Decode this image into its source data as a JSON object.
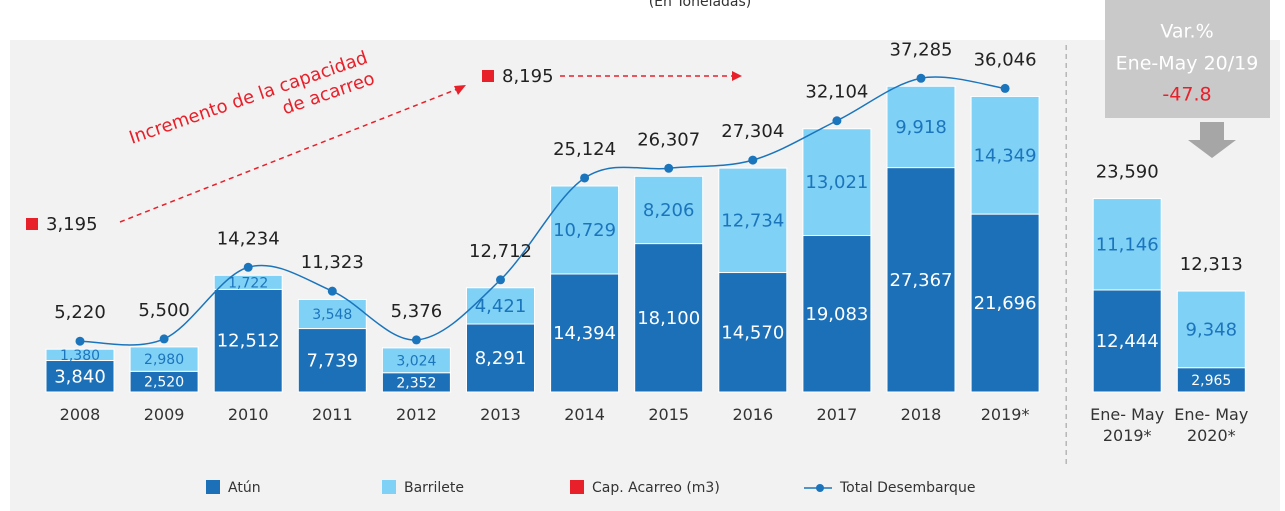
{
  "chart_data": {
    "type": "stacked_bar_line",
    "subtitle": "(En Toneladas)",
    "annotation": "Incremento de la capacidad de acarreo",
    "categories": [
      "2008",
      "2009",
      "2010",
      "2011",
      "2012",
      "2013",
      "2014",
      "2015",
      "2016",
      "2017",
      "2018",
      "2019*",
      "Ene- May 2019*",
      "Ene- May 2020*"
    ],
    "ylim": [
      0,
      40000
    ],
    "series": [
      {
        "name": "Atún",
        "color": "#1b70b8",
        "label_color": "#ffffff",
        "values": [
          3840,
          2520,
          12512,
          7739,
          2352,
          8291,
          14394,
          18100,
          14570,
          19083,
          27367,
          21696,
          12444,
          2965
        ],
        "value_labels": [
          "3,840",
          "2,520",
          "12,512",
          "7,739",
          "2,352",
          "8,291",
          "14,394",
          "18,100",
          "14,570",
          "19,083",
          "27,367",
          "21,696",
          "12,444",
          "2,965"
        ]
      },
      {
        "name": "Barrilete",
        "color": "#80d1f6",
        "label_color": "#1b75bc",
        "values": [
          1380,
          2980,
          1722,
          3548,
          3024,
          4421,
          10729,
          8206,
          12734,
          13021,
          9918,
          14349,
          11146,
          9348
        ],
        "value_labels": [
          "1,380",
          "2,980",
          "1,722",
          "3,548",
          "3,024",
          "4,421",
          "10,729",
          "8,206",
          "12,734",
          "13,021",
          "9,918",
          "14,349",
          "11,146",
          "9,348"
        ]
      },
      {
        "name": "Total Desembarque",
        "color": "#1b75bc",
        "type": "line",
        "values": [
          5220,
          5500,
          14234,
          11323,
          5376,
          12712,
          25124,
          26307,
          27304,
          32104,
          37285,
          36046,
          null,
          null
        ],
        "value_labels": [
          "5,220",
          "5,500",
          "14,234",
          "11,323",
          "5,376",
          "12,712",
          "25,124",
          "26,307",
          "27,304",
          "32,104",
          "37,285",
          "36,046",
          null,
          null
        ]
      }
    ],
    "period_totals": {
      "values": [
        23590,
        12313
      ],
      "value_labels": [
        "23,590",
        "12,313"
      ]
    },
    "cap_acarreo": {
      "name": "Cap. Acarreo (m3)",
      "color": "#e8202a",
      "values": [
        3195,
        8195
      ],
      "value_labels": [
        "3,195",
        "8,195"
      ]
    },
    "variation": {
      "lines": [
        "Var.%",
        "Ene-May 20/19"
      ],
      "value": -47.8
    }
  }
}
